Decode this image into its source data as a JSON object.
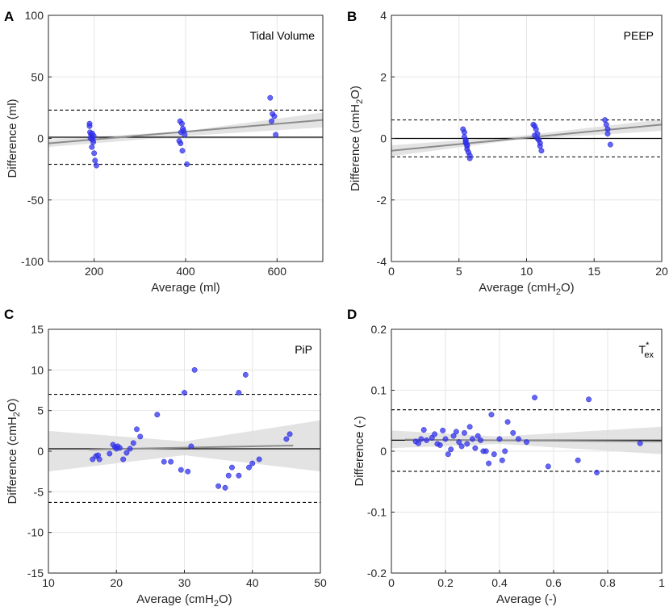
{
  "chart_data": [
    {
      "panel": "A",
      "type": "scatter",
      "annotation": "Tidal Volume",
      "annotation_sub": "",
      "xlabel": "Average (ml)",
      "ylabel": "Difference (ml)",
      "ylabel_sub": "",
      "ylabel_suffix": "",
      "xlim": [
        100,
        700
      ],
      "ylim": [
        -100,
        100
      ],
      "xticks": [
        200,
        400,
        600
      ],
      "xtick_labels": [
        "200",
        "400",
        "600"
      ],
      "yticks": [
        -100,
        -50,
        0,
        50,
        100
      ],
      "ytick_labels": [
        "-100",
        "-50",
        "0",
        "50",
        "100"
      ],
      "grid": true,
      "mean_line": 1,
      "loa_upper": 23,
      "loa_lower": -21,
      "regression": {
        "x0": 100,
        "y0": -4,
        "x1": 700,
        "y1": 15
      },
      "ci_band": [
        [
          100,
          -7,
          -1
        ],
        [
          400,
          2,
          6
        ],
        [
          700,
          9,
          21
        ]
      ],
      "points": [
        [
          190,
          12
        ],
        [
          190,
          10
        ],
        [
          191,
          5
        ],
        [
          193,
          3
        ],
        [
          195,
          1
        ],
        [
          192,
          0
        ],
        [
          197,
          -1
        ],
        [
          198,
          -3
        ],
        [
          195,
          -7
        ],
        [
          200,
          -12
        ],
        [
          202,
          -18
        ],
        [
          205,
          -22
        ],
        [
          199,
          2
        ],
        [
          196,
          4
        ],
        [
          388,
          14
        ],
        [
          392,
          12
        ],
        [
          394,
          8
        ],
        [
          390,
          5
        ],
        [
          396,
          6
        ],
        [
          398,
          3
        ],
        [
          386,
          -2
        ],
        [
          389,
          -4
        ],
        [
          393,
          -10
        ],
        [
          403,
          -21
        ],
        [
          585,
          33
        ],
        [
          590,
          20
        ],
        [
          594,
          18
        ],
        [
          588,
          14
        ],
        [
          597,
          3
        ]
      ]
    },
    {
      "panel": "B",
      "type": "scatter",
      "annotation": "PEEP",
      "annotation_sub": "",
      "xlabel": "Average (cmH",
      "xlabel_sub": "2",
      "xlabel_suffix": "O)",
      "ylabel": "Difference (cmH",
      "ylabel_sub": "2",
      "ylabel_suffix": "O)",
      "xlim": [
        0,
        20
      ],
      "ylim": [
        -4,
        4
      ],
      "xticks": [
        0,
        5,
        10,
        15,
        20
      ],
      "xtick_labels": [
        "0",
        "5",
        "10",
        "15",
        "20"
      ],
      "yticks": [
        -4,
        -2,
        0,
        2,
        4
      ],
      "ytick_labels": [
        "-4",
        "-2",
        "0",
        "2",
        "4"
      ],
      "grid": true,
      "mean_line": 0,
      "loa_upper": 0.6,
      "loa_lower": -0.6,
      "regression": {
        "x0": 0,
        "y0": -0.4,
        "x1": 20,
        "y1": 0.45
      },
      "ci_band": [
        [
          0,
          -0.58,
          -0.22
        ],
        [
          9,
          -0.06,
          0.06
        ],
        [
          20,
          0.25,
          0.62
        ]
      ],
      "points": [
        [
          5.3,
          0.3
        ],
        [
          5.4,
          0.2
        ],
        [
          5.4,
          0.05
        ],
        [
          5.5,
          -0.05
        ],
        [
          5.5,
          -0.15
        ],
        [
          5.6,
          -0.25
        ],
        [
          5.6,
          -0.35
        ],
        [
          5.7,
          -0.45
        ],
        [
          5.8,
          -0.55
        ],
        [
          5.8,
          -0.65
        ],
        [
          5.5,
          -0.1
        ],
        [
          5.6,
          -0.2
        ],
        [
          10.5,
          0.45
        ],
        [
          10.6,
          0.4
        ],
        [
          10.7,
          0.3
        ],
        [
          10.8,
          0.15
        ],
        [
          10.8,
          0.0
        ],
        [
          10.9,
          -0.05
        ],
        [
          11.0,
          -0.15
        ],
        [
          11.0,
          -0.25
        ],
        [
          11.1,
          -0.4
        ],
        [
          10.6,
          0.1
        ],
        [
          15.8,
          0.6
        ],
        [
          15.9,
          0.45
        ],
        [
          16.0,
          0.3
        ],
        [
          16.0,
          0.15
        ],
        [
          16.2,
          -0.2
        ]
      ]
    },
    {
      "panel": "C",
      "type": "scatter",
      "annotation": "PiP",
      "annotation_sub": "",
      "xlabel": "Average (cmH",
      "xlabel_sub": "2",
      "xlabel_suffix": "O)",
      "ylabel": "Difference (cmH",
      "ylabel_sub": "2",
      "ylabel_suffix": "O)",
      "xlim": [
        10,
        50
      ],
      "ylim": [
        -15,
        15
      ],
      "xticks": [
        10,
        20,
        30,
        40,
        50
      ],
      "xtick_labels": [
        "10",
        "20",
        "30",
        "40",
        "50"
      ],
      "yticks": [
        -15,
        -10,
        -5,
        0,
        5,
        10,
        15
      ],
      "ytick_labels": [
        "-15",
        "-10",
        "-5",
        "0",
        "5",
        "10",
        "15"
      ],
      "grid": true,
      "mean_line": 0.3,
      "loa_upper": 7,
      "loa_lower": -6.3,
      "regression": {
        "x0": 16,
        "y0": 0.2,
        "x1": 46,
        "y1": 0.7
      },
      "ci_band": [
        [
          10,
          -2.5,
          2.5
        ],
        [
          30,
          -0.5,
          1.2
        ],
        [
          50,
          -2.5,
          3.8
        ]
      ],
      "points": [
        [
          16.5,
          -1.0
        ],
        [
          17,
          -0.6
        ],
        [
          17.3,
          -0.5
        ],
        [
          17.5,
          -1.0
        ],
        [
          19,
          -0.3
        ],
        [
          19.5,
          0.8
        ],
        [
          19.8,
          0.5
        ],
        [
          20,
          0.3
        ],
        [
          20.2,
          0.6
        ],
        [
          20.5,
          0.4
        ],
        [
          21,
          -1.0
        ],
        [
          21.5,
          -0.2
        ],
        [
          22,
          0.3
        ],
        [
          22.5,
          1.0
        ],
        [
          23,
          2.7
        ],
        [
          23.5,
          1.8
        ],
        [
          26,
          4.5
        ],
        [
          27,
          -1.3
        ],
        [
          28,
          -1.3
        ],
        [
          29.5,
          -2.3
        ],
        [
          30,
          7.2
        ],
        [
          30.5,
          -2.5
        ],
        [
          31,
          0.6
        ],
        [
          31.5,
          10
        ],
        [
          35,
          -4.3
        ],
        [
          36,
          -4.5
        ],
        [
          36.5,
          -3.0
        ],
        [
          37,
          -2.0
        ],
        [
          38,
          7.2
        ],
        [
          38,
          -3.0
        ],
        [
          39,
          9.4
        ],
        [
          39.5,
          -2.0
        ],
        [
          40,
          -1.5
        ],
        [
          41,
          -1.0
        ],
        [
          45,
          1.5
        ],
        [
          45.5,
          2.1
        ]
      ]
    },
    {
      "panel": "D",
      "type": "scatter",
      "annotation": "T",
      "annotation_sup": "*",
      "annotation_sub": "ex",
      "xlabel": "Average (-)",
      "ylabel": "Difference (-)",
      "ylabel_sub": "",
      "ylabel_suffix": "",
      "xlim": [
        0,
        1
      ],
      "ylim": [
        -0.2,
        0.2
      ],
      "xticks": [
        0,
        0.2,
        0.4,
        0.6,
        0.8,
        1
      ],
      "xtick_labels": [
        "0",
        "0.2",
        "0.4",
        "0.6",
        "0.8",
        "1"
      ],
      "yticks": [
        -0.2,
        -0.1,
        0,
        0.1,
        0.2
      ],
      "ytick_labels": [
        "-0.2",
        "-0.1",
        "0",
        "0.1",
        "0.2"
      ],
      "grid": true,
      "mean_line": 0.018,
      "loa_upper": 0.068,
      "loa_lower": -0.033,
      "regression": {
        "x0": 0.05,
        "y0": 0.019,
        "x1": 1.0,
        "y1": 0.016
      },
      "ci_band": [
        [
          0.0,
          0.005,
          0.034
        ],
        [
          0.4,
          0.012,
          0.024
        ],
        [
          1.0,
          -0.005,
          0.04
        ]
      ],
      "points": [
        [
          0.09,
          0.016
        ],
        [
          0.1,
          0.013
        ],
        [
          0.11,
          0.02
        ],
        [
          0.12,
          0.035
        ],
        [
          0.13,
          0.018
        ],
        [
          0.15,
          0.022
        ],
        [
          0.16,
          0.028
        ],
        [
          0.17,
          0.012
        ],
        [
          0.18,
          0.01
        ],
        [
          0.19,
          0.034
        ],
        [
          0.2,
          0.02
        ],
        [
          0.21,
          -0.005
        ],
        [
          0.22,
          0.003
        ],
        [
          0.23,
          0.025
        ],
        [
          0.24,
          0.032
        ],
        [
          0.25,
          0.015
        ],
        [
          0.26,
          0.008
        ],
        [
          0.27,
          0.03
        ],
        [
          0.28,
          0.012
        ],
        [
          0.29,
          0.04
        ],
        [
          0.3,
          0.02
        ],
        [
          0.31,
          0.005
        ],
        [
          0.32,
          0.025
        ],
        [
          0.33,
          0.018
        ],
        [
          0.34,
          0.0
        ],
        [
          0.35,
          0.0
        ],
        [
          0.36,
          -0.02
        ],
        [
          0.37,
          0.06
        ],
        [
          0.38,
          -0.005
        ],
        [
          0.4,
          0.02
        ],
        [
          0.41,
          -0.015
        ],
        [
          0.42,
          0.0
        ],
        [
          0.43,
          0.048
        ],
        [
          0.45,
          0.03
        ],
        [
          0.47,
          0.02
        ],
        [
          0.5,
          0.015
        ],
        [
          0.53,
          0.088
        ],
        [
          0.58,
          -0.025
        ],
        [
          0.69,
          -0.015
        ],
        [
          0.73,
          0.085
        ],
        [
          0.76,
          -0.035
        ],
        [
          0.92,
          0.013
        ]
      ]
    }
  ]
}
